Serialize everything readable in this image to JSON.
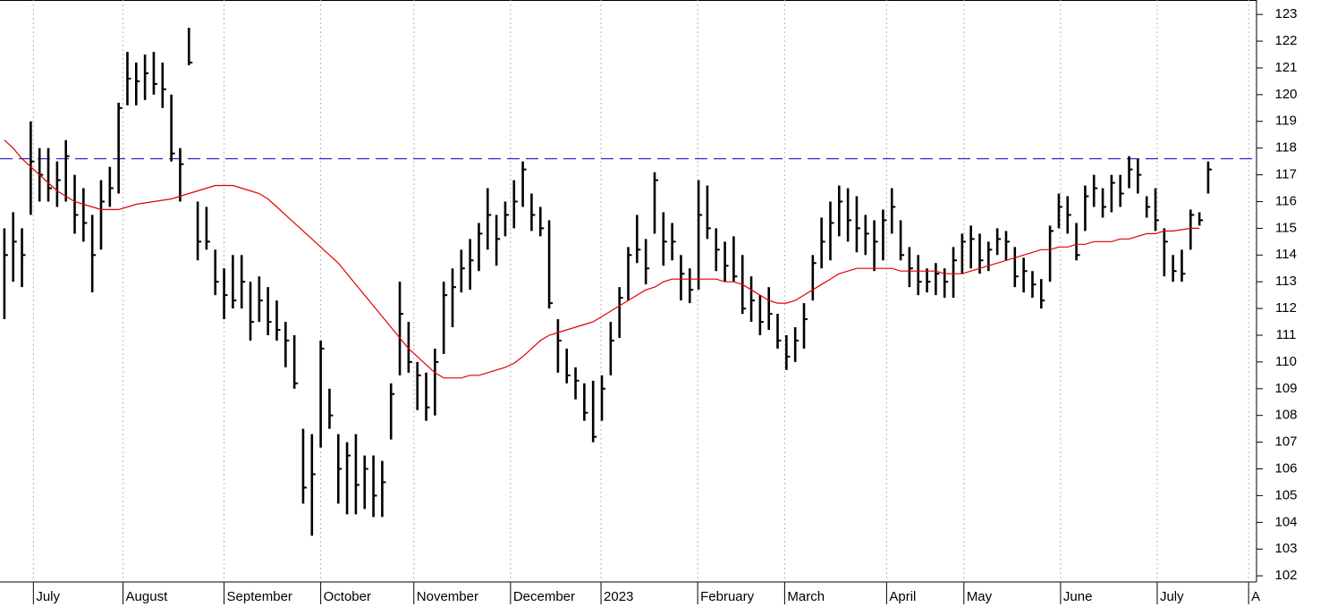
{
  "chart_data": {
    "type": "ohlc",
    "color": "#000000",
    "high": [
      115,
      115.6,
      115,
      119,
      118,
      118,
      117.5,
      118.3,
      117,
      116.5,
      115.5,
      116.8,
      117.3,
      119.7,
      121.6,
      121.2,
      121.5,
      121.6,
      121.2,
      120,
      118,
      122.5,
      116,
      115.8,
      114.2,
      113.5,
      114,
      114,
      113,
      113.2,
      112.8,
      112.3,
      111.5,
      111,
      107.5,
      107.3,
      110.8,
      109,
      107.3,
      107,
      107.3,
      106.5,
      106.5,
      106.3,
      109.2,
      113,
      111.5,
      110,
      109.6,
      110.5,
      113,
      113.5,
      114.2,
      114.6,
      115.2,
      116.5,
      115.5,
      116,
      116.8,
      117.5,
      116.3,
      115.8,
      115.3,
      111.6,
      110.5,
      109.8,
      109.2,
      109.3,
      109.5,
      111.5,
      112.8,
      114.3,
      115.5,
      114.6,
      117.1,
      115.6,
      115.2,
      114,
      113.5,
      116.8,
      116.6,
      115,
      114.5,
      114.7,
      114,
      113.2,
      112.5,
      112.8,
      111.8,
      111,
      111.3,
      112.2,
      114,
      115.4,
      116,
      116.6,
      116.5,
      116.2,
      115.5,
      115.3,
      115.7,
      116.5,
      115.3,
      114.3,
      114,
      113.5,
      113.7,
      113.5,
      114.3,
      114.8,
      115.1,
      114.8,
      114.5,
      115,
      114.9,
      114.3,
      113.9,
      113.4,
      113.1,
      115.1,
      116.3,
      116.2,
      115.2,
      116.6,
      117,
      116.5,
      117,
      117,
      117.7,
      117.6,
      116.2,
      116.5,
      115,
      114,
      114.2,
      115.7,
      115.6,
      117.5
    ],
    "low": [
      111.6,
      113,
      112.8,
      115.5,
      116,
      116,
      115.8,
      116,
      114.8,
      114.5,
      112.6,
      114.2,
      115.8,
      116.3,
      119.6,
      119.6,
      119.8,
      120,
      119.5,
      117.5,
      116,
      121.1,
      113.8,
      114.2,
      112.5,
      111.6,
      112,
      112,
      110.8,
      111.5,
      111,
      110.8,
      109.8,
      109,
      104.7,
      103.5,
      106.8,
      107.5,
      104.7,
      104.3,
      104.3,
      104.5,
      104.2,
      104.2,
      107.1,
      109.5,
      109.6,
      108.2,
      107.8,
      108,
      110.3,
      111.3,
      112.6,
      112.7,
      113.4,
      114.2,
      113.6,
      114.7,
      115,
      115.8,
      114.9,
      114.7,
      112,
      109.6,
      109.2,
      108.6,
      107.8,
      107,
      107.8,
      109.5,
      110.9,
      112.3,
      113.7,
      112.9,
      114.8,
      113.6,
      113.8,
      112.3,
      112.2,
      112.7,
      114.6,
      113.4,
      113,
      113,
      111.8,
      111.5,
      111,
      111.2,
      110.5,
      109.7,
      110,
      110.5,
      112.3,
      113.5,
      113.8,
      114.7,
      114.5,
      114.1,
      114,
      113.4,
      113.8,
      114.8,
      113.8,
      112.8,
      112.5,
      112.6,
      112.5,
      112.4,
      112.4,
      113.3,
      113.5,
      113.3,
      113.4,
      114,
      113.8,
      112.8,
      112.6,
      112.4,
      112,
      113,
      115,
      114.8,
      113.8,
      114.9,
      115.8,
      115.4,
      115.6,
      115.8,
      116.5,
      116.3,
      115.4,
      114.9,
      113.2,
      113,
      113,
      114.2,
      115.1,
      116.3
    ],
    "close": [
      114,
      114.5,
      114,
      117.5,
      117,
      116.5,
      116.8,
      117.7,
      115.5,
      115.2,
      114,
      116,
      116.5,
      119.5,
      120.6,
      120.5,
      120.8,
      120.4,
      120.2,
      117.8,
      117.4,
      121.2,
      114.5,
      114.5,
      113,
      112.5,
      112.3,
      113,
      111.5,
      112.3,
      111.5,
      111.2,
      110.8,
      109.2,
      105.3,
      105.8,
      110.5,
      108,
      106,
      106.5,
      105.4,
      106,
      105,
      105.5,
      108.8,
      111.8,
      110,
      109.5,
      108.3,
      110,
      112.5,
      112.8,
      113.5,
      113.8,
      114.8,
      115.5,
      114.6,
      115.5,
      116,
      117.2,
      115.5,
      115,
      112.2,
      110.8,
      109.5,
      109.3,
      108.1,
      107.2,
      109,
      110.8,
      112.4,
      114,
      114.2,
      113.5,
      116.8,
      114.5,
      114.5,
      113.3,
      112.7,
      115.5,
      115,
      114.2,
      113.6,
      113.2,
      112,
      112.3,
      111.5,
      111.8,
      110.8,
      110.2,
      110.8,
      111.6,
      113.7,
      114.5,
      115.2,
      116,
      115.3,
      115,
      114.8,
      114.5,
      115.3,
      115.8,
      114,
      113.5,
      113,
      113,
      113.3,
      113,
      113.8,
      114.5,
      114.6,
      113.8,
      114.2,
      114.6,
      114.5,
      113.2,
      113.4,
      112.9,
      112.3,
      114.9,
      115.8,
      115.5,
      114,
      116.2,
      116.5,
      115.8,
      116.7,
      116.3,
      117.2,
      117,
      115.8,
      115.3,
      114.5,
      113.4,
      113.3,
      115.5,
      115.3,
      117.2
    ],
    "moving_average": {
      "color": "#e00000",
      "values": [
        118.3,
        118.0,
        117.6,
        117.3,
        117.0,
        116.7,
        116.4,
        116.2,
        116.0,
        115.9,
        115.8,
        115.7,
        115.7,
        115.7,
        115.8,
        115.9,
        115.95,
        116.0,
        116.05,
        116.1,
        116.2,
        116.3,
        116.4,
        116.5,
        116.6,
        116.6,
        116.6,
        116.5,
        116.4,
        116.3,
        116.1,
        115.8,
        115.5,
        115.2,
        114.9,
        114.6,
        114.3,
        114.0,
        113.7,
        113.3,
        112.9,
        112.5,
        112.1,
        111.7,
        111.3,
        110.9,
        110.5,
        110.2,
        109.9,
        109.6,
        109.4,
        109.4,
        109.4,
        109.5,
        109.5,
        109.6,
        109.7,
        109.8,
        109.95,
        110.2,
        110.5,
        110.8,
        111.0,
        111.1,
        111.2,
        111.3,
        111.4,
        111.5,
        111.7,
        111.9,
        112.1,
        112.3,
        112.5,
        112.7,
        112.8,
        113.0,
        113.1,
        113.1,
        113.1,
        113.1,
        113.1,
        113.1,
        113.0,
        113.0,
        112.9,
        112.7,
        112.5,
        112.3,
        112.2,
        112.2,
        112.3,
        112.5,
        112.7,
        112.9,
        113.1,
        113.3,
        113.4,
        113.5,
        113.5,
        113.5,
        113.5,
        113.5,
        113.4,
        113.4,
        113.4,
        113.4,
        113.4,
        113.3,
        113.3,
        113.3,
        113.4,
        113.5,
        113.6,
        113.7,
        113.8,
        113.9,
        114.0,
        114.1,
        114.2,
        114.2,
        114.3,
        114.3,
        114.4,
        114.4,
        114.5,
        114.5,
        114.5,
        114.6,
        114.6,
        114.7,
        114.8,
        114.8,
        114.9,
        114.9,
        114.95,
        115.0,
        115.0,
        null
      ]
    },
    "reference_line": {
      "value": 117.6,
      "color": "#0000c0"
    },
    "ylim": [
      101.77,
      123.54
    ],
    "yticks": [
      102,
      103,
      104,
      105,
      106,
      107,
      108,
      109,
      110,
      111,
      112,
      113,
      114,
      115,
      116,
      117,
      118,
      119,
      120,
      121,
      122,
      123
    ],
    "xlim": [
      -0.5,
      142.5
    ],
    "xticks": [
      {
        "value": 3.3,
        "label": "July"
      },
      {
        "value": 13.5,
        "label": "August"
      },
      {
        "value": 25.0,
        "label": "September"
      },
      {
        "value": 36.0,
        "label": "October"
      },
      {
        "value": 46.6,
        "label": "November"
      },
      {
        "value": 57.6,
        "label": "December"
      },
      {
        "value": 67.9,
        "label": "2023"
      },
      {
        "value": 78.9,
        "label": "February"
      },
      {
        "value": 88.8,
        "label": "March"
      },
      {
        "value": 100.4,
        "label": "April"
      },
      {
        "value": 109.2,
        "label": "May"
      },
      {
        "value": 120.2,
        "label": "June"
      },
      {
        "value": 131.2,
        "label": "July"
      },
      {
        "value": 141.6,
        "label": "A"
      }
    ],
    "grid": true
  }
}
